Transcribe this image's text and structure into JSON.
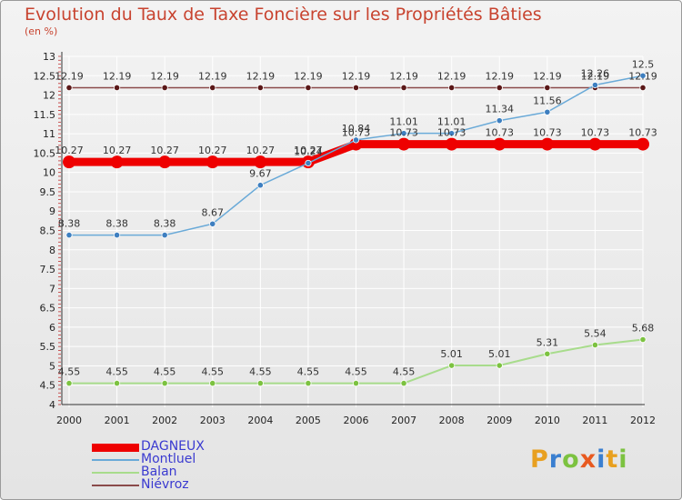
{
  "title": "Evolution du Taux de Taxe Foncière sur les Propriétés Bâties",
  "subtitle": "(en %)",
  "logo": {
    "text": "Proxiti",
    "colors": [
      "#e8a020",
      "#3a7fd0",
      "#7cc240",
      "#e85a20",
      "#3a7fd0",
      "#e8a020",
      "#7cc240"
    ]
  },
  "chart_data": {
    "type": "line",
    "title": "Evolution du Taux de Taxe Foncière sur les Propriétés Bâties",
    "ylabel": "(en %)",
    "xlabel": "",
    "x": [
      "2000",
      "2001",
      "2002",
      "2003",
      "2004",
      "2005",
      "2006",
      "2007",
      "2008",
      "2009",
      "2010",
      "2011",
      "2012"
    ],
    "ylim": [
      4,
      13
    ],
    "yticks": [
      "4",
      "4.5",
      "5",
      "5.5",
      "6",
      "6.5",
      "7",
      "7.5",
      "8",
      "8.5",
      "9",
      "9.5",
      "10",
      "10.5",
      "11",
      "11.5",
      "12",
      "12.5",
      "13"
    ],
    "grid": true,
    "legend_position": "bottom-left",
    "series": [
      {
        "name": "DAGNEUX",
        "color": "#ee0000",
        "marker": "#ee0000",
        "width": 9,
        "values": [
          10.27,
          10.27,
          10.27,
          10.27,
          10.27,
          10.27,
          10.73,
          10.73,
          10.73,
          10.73,
          10.73,
          10.73,
          10.73
        ]
      },
      {
        "name": "Montluel",
        "color": "#6aaad8",
        "marker": "#3e7fc0",
        "width": 1.5,
        "values": [
          8.38,
          8.38,
          8.38,
          8.67,
          9.67,
          10.24,
          10.84,
          11.01,
          11.01,
          11.34,
          11.56,
          12.26,
          12.5
        ]
      },
      {
        "name": "Balan",
        "color": "#a8dc8c",
        "marker": "#7cc240",
        "width": 2,
        "values": [
          4.55,
          4.55,
          4.55,
          4.55,
          4.55,
          4.55,
          4.55,
          4.55,
          5.01,
          5.01,
          5.31,
          5.54,
          5.68
        ]
      },
      {
        "name": "Niévroz",
        "color": "#8a4a4a",
        "marker": "#5a1818",
        "width": 1.5,
        "values": [
          12.19,
          12.19,
          12.19,
          12.19,
          12.19,
          12.19,
          12.19,
          12.19,
          12.19,
          12.19,
          12.19,
          12.19,
          12.19
        ]
      }
    ],
    "data_labels": [
      {
        "series": 3,
        "text": [
          "12.19",
          "12.19",
          "12.19",
          "12.19",
          "12.19",
          "12.19",
          "12.19",
          "12.19",
          "12.19",
          "12.19",
          "12.19",
          "12.19",
          "12.19"
        ]
      },
      {
        "series": 1,
        "text": [
          "8.38",
          "8.38",
          "8.38",
          "8.67",
          "9.67",
          "10.24",
          "10.84",
          "11.01",
          "11.01",
          "11.34",
          "11.56",
          "12.26",
          "12.5"
        ]
      },
      {
        "series": 0,
        "text": [
          "10.27",
          "10.27",
          "10.27",
          "10.27",
          "10.27",
          "10.27",
          "10.73",
          "10.73",
          "10.73",
          "10.73",
          "10.73",
          "10.73",
          "10.73"
        ]
      },
      {
        "series": 2,
        "text": [
          "4.55",
          "4.55",
          "4.55",
          "4.55",
          "4.55",
          "4.55",
          "4.55",
          "4.55",
          "5.01",
          "5.01",
          "5.31",
          "5.54",
          "5.68"
        ]
      }
    ]
  }
}
